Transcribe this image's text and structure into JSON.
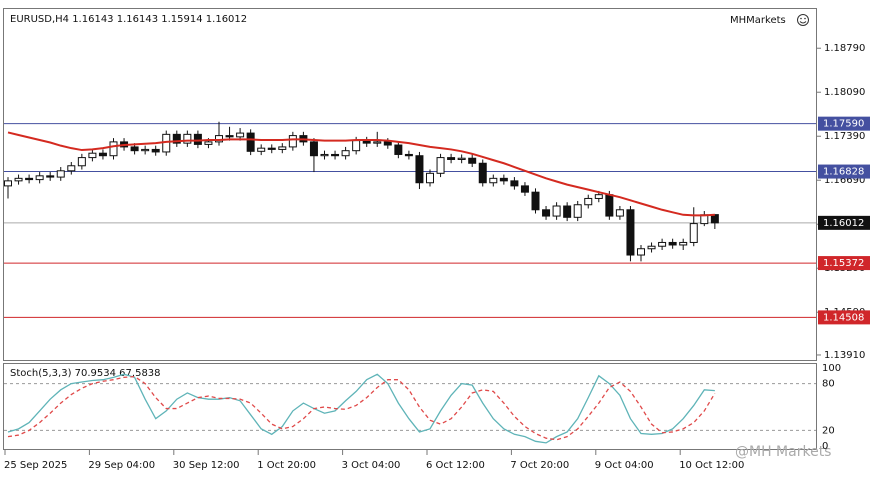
{
  "chart_data": [
    {
      "type": "candlestick",
      "title": "EURUSD,H4  1.16143 1.16143 1.15914 1.16012",
      "brand": "MHMarkets",
      "watermark": "@MH Markets",
      "categories": [
        "25 Sep 2025",
        null,
        null,
        null,
        null,
        null,
        null,
        null,
        "29 Sep 04:00",
        null,
        null,
        null,
        null,
        null,
        null,
        null,
        "30 Sep 12:00",
        null,
        null,
        null,
        null,
        null,
        null,
        null,
        "1 Oct 20:00",
        null,
        null,
        null,
        null,
        null,
        null,
        null,
        "3 Oct 04:00",
        null,
        null,
        null,
        null,
        null,
        null,
        null,
        "6 Oct 12:00",
        null,
        null,
        null,
        null,
        null,
        null,
        null,
        "7 Oct 20:00",
        null,
        null,
        null,
        null,
        null,
        null,
        null,
        "9 Oct 04:00",
        null,
        null,
        null,
        null,
        null,
        null,
        null,
        "10 Oct 12:00",
        null,
        null,
        null
      ],
      "open": [
        1.166,
        1.1668,
        1.1672,
        1.167,
        1.1676,
        1.1674,
        1.1684,
        1.1692,
        1.1705,
        1.1712,
        1.1708,
        1.173,
        1.1722,
        1.1716,
        1.1718,
        1.1714,
        1.1742,
        1.1728,
        1.1742,
        1.1726,
        1.173,
        1.174,
        1.1738,
        1.1744,
        1.1715,
        1.172,
        1.1718,
        1.1722,
        1.174,
        1.173,
        1.1708,
        1.171,
        1.1708,
        1.1716,
        1.1732,
        1.1728,
        1.173,
        1.1725,
        1.171,
        1.1708,
        1.1665,
        1.168,
        1.1705,
        1.1702,
        1.1704,
        1.1696,
        1.1665,
        1.1672,
        1.1668,
        1.166,
        1.165,
        1.1622,
        1.1612,
        1.1628,
        1.161,
        1.163,
        1.164,
        1.1646,
        1.1612,
        1.1622,
        1.155,
        1.156,
        1.1564,
        1.157,
        1.1566,
        1.157,
        1.16,
        1.16143
      ],
      "high": [
        1.1674,
        1.1678,
        1.1678,
        1.1682,
        1.1682,
        1.169,
        1.1698,
        1.1711,
        1.1718,
        1.1718,
        1.1736,
        1.1736,
        1.1728,
        1.1724,
        1.1724,
        1.1748,
        1.1748,
        1.1748,
        1.1748,
        1.1736,
        1.1762,
        1.1754,
        1.1752,
        1.175,
        1.1726,
        1.1726,
        1.1728,
        1.1746,
        1.1746,
        1.1736,
        1.1716,
        1.1716,
        1.1722,
        1.1738,
        1.1738,
        1.1746,
        1.1736,
        1.1731,
        1.1716,
        1.1714,
        1.1686,
        1.1711,
        1.1711,
        1.171,
        1.171,
        1.1702,
        1.1678,
        1.1678,
        1.1674,
        1.1666,
        1.1656,
        1.1628,
        1.1634,
        1.1634,
        1.1636,
        1.1646,
        1.1652,
        1.1652,
        1.1628,
        1.1628,
        1.1566,
        1.157,
        1.1576,
        1.1576,
        1.1576,
        1.1626,
        1.162,
        1.16143
      ],
      "low": [
        1.164,
        1.1662,
        1.1664,
        1.1664,
        1.1668,
        1.1668,
        1.1678,
        1.1686,
        1.1699,
        1.1702,
        1.1702,
        1.1716,
        1.171,
        1.171,
        1.1708,
        1.1708,
        1.1722,
        1.1722,
        1.172,
        1.172,
        1.1724,
        1.1732,
        1.1732,
        1.1709,
        1.1709,
        1.1712,
        1.1712,
        1.1716,
        1.1724,
        1.1682,
        1.1702,
        1.1702,
        1.1702,
        1.171,
        1.1722,
        1.1722,
        1.1719,
        1.1704,
        1.1702,
        1.1655,
        1.1659,
        1.1674,
        1.1696,
        1.1696,
        1.169,
        1.1659,
        1.1659,
        1.1662,
        1.1654,
        1.1644,
        1.1616,
        1.1606,
        1.1606,
        1.1604,
        1.1604,
        1.1624,
        1.1634,
        1.1606,
        1.1606,
        1.154,
        1.154,
        1.1554,
        1.1558,
        1.156,
        1.1558,
        1.1564,
        1.1596,
        1.15914
      ],
      "close": [
        1.1668,
        1.1672,
        1.167,
        1.1676,
        1.1674,
        1.1684,
        1.1692,
        1.1705,
        1.1712,
        1.1708,
        1.173,
        1.1722,
        1.1716,
        1.1718,
        1.1714,
        1.1742,
        1.1728,
        1.1742,
        1.1726,
        1.173,
        1.174,
        1.1738,
        1.1744,
        1.1715,
        1.172,
        1.1718,
        1.1722,
        1.174,
        1.173,
        1.1708,
        1.171,
        1.1708,
        1.1716,
        1.1732,
        1.1728,
        1.173,
        1.1725,
        1.171,
        1.1708,
        1.1665,
        1.168,
        1.1705,
        1.1702,
        1.1704,
        1.1696,
        1.1665,
        1.1672,
        1.1668,
        1.166,
        1.165,
        1.1622,
        1.1612,
        1.1628,
        1.161,
        1.163,
        1.164,
        1.1646,
        1.1612,
        1.1622,
        1.155,
        1.156,
        1.1564,
        1.157,
        1.1566,
        1.157,
        1.16,
        1.1614,
        1.16012
      ],
      "overlay": {
        "color": "#d42a20",
        "values": [
          1.1745,
          1.1741,
          1.1737,
          1.1733,
          1.1729,
          1.1724,
          1.172,
          1.1717,
          1.1718,
          1.172,
          1.1723,
          1.1725,
          1.1726,
          1.1727,
          1.1728,
          1.173,
          1.1731,
          1.1732,
          1.1732,
          1.1733,
          1.1733,
          1.1734,
          1.1734,
          1.1734,
          1.1733,
          1.1733,
          1.1733,
          1.1734,
          1.1734,
          1.1733,
          1.1732,
          1.1732,
          1.1732,
          1.1733,
          1.1733,
          1.1733,
          1.1732,
          1.173,
          1.1728,
          1.1725,
          1.1722,
          1.172,
          1.1718,
          1.1715,
          1.1711,
          1.1706,
          1.1701,
          1.1696,
          1.169,
          1.1684,
          1.1678,
          1.1672,
          1.1667,
          1.1662,
          1.1658,
          1.1654,
          1.165,
          1.1646,
          1.1642,
          1.1637,
          1.1632,
          1.1627,
          1.1622,
          1.1618,
          1.1614,
          1.1613,
          1.1613,
          1.1614
        ]
      },
      "levels": [
        {
          "value": 1.1759,
          "label": "1.17590",
          "color": "#4450a0"
        },
        {
          "value": 1.16828,
          "label": "1.16828",
          "color": "#4450a0"
        },
        {
          "value": 1.16012,
          "label": "1.16012",
          "color": "#111111"
        },
        {
          "value": 1.15372,
          "label": "1.15372",
          "color": "#d0262a"
        },
        {
          "value": 1.14508,
          "label": "1.14508",
          "color": "#d0262a"
        }
      ],
      "ylim": [
        1.1383,
        1.1943
      ],
      "yticks": [
        {
          "value": 1.1879,
          "label": "1.18790"
        },
        {
          "value": 1.1809,
          "label": "1.18090"
        },
        {
          "value": 1.1739,
          "label": "1.17390"
        },
        {
          "value": 1.1669,
          "label": "1.16690"
        },
        {
          "value": 1.1599,
          "label": "1.15990"
        },
        {
          "value": 1.1529,
          "label": "1.15290"
        },
        {
          "value": 1.1459,
          "label": "1.14590"
        },
        {
          "value": 1.1391,
          "label": "1.13910"
        }
      ],
      "up_color": "#ffffff",
      "down_color": "#111111"
    },
    {
      "type": "line",
      "title": "Stoch(5,3,3) 70.9534 67.5838",
      "series": [
        {
          "color": "#5fb4b8",
          "values": [
            18,
            22,
            30,
            45,
            60,
            72,
            80,
            82,
            84,
            85,
            88,
            92,
            88,
            60,
            35,
            45,
            60,
            68,
            62,
            60,
            60,
            62,
            58,
            40,
            22,
            15,
            25,
            45,
            55,
            48,
            42,
            45,
            58,
            70,
            85,
            92,
            80,
            55,
            35,
            18,
            22,
            45,
            65,
            80,
            78,
            55,
            35,
            22,
            15,
            12,
            6,
            4,
            12,
            18,
            35,
            62,
            90,
            80,
            65,
            35,
            16,
            15,
            16,
            22,
            35,
            52,
            72,
            70.9534
          ]
        },
        {
          "color": "#e04a4a",
          "dashed": true,
          "values": [
            12,
            14,
            20,
            30,
            42,
            55,
            66,
            74,
            80,
            83,
            85,
            88,
            89,
            80,
            62,
            48,
            48,
            55,
            62,
            64,
            61,
            61,
            60,
            55,
            42,
            28,
            22,
            25,
            35,
            48,
            50,
            48,
            47,
            52,
            62,
            75,
            85,
            85,
            72,
            50,
            33,
            28,
            35,
            50,
            68,
            72,
            70,
            55,
            38,
            25,
            16,
            10,
            8,
            12,
            22,
            38,
            55,
            75,
            82,
            70,
            50,
            28,
            17,
            18,
            22,
            30,
            45,
            67.5838
          ]
        }
      ],
      "levels": [
        80,
        20
      ],
      "ylim": [
        0,
        100
      ],
      "yticks": [
        100,
        80,
        20,
        0
      ]
    }
  ]
}
